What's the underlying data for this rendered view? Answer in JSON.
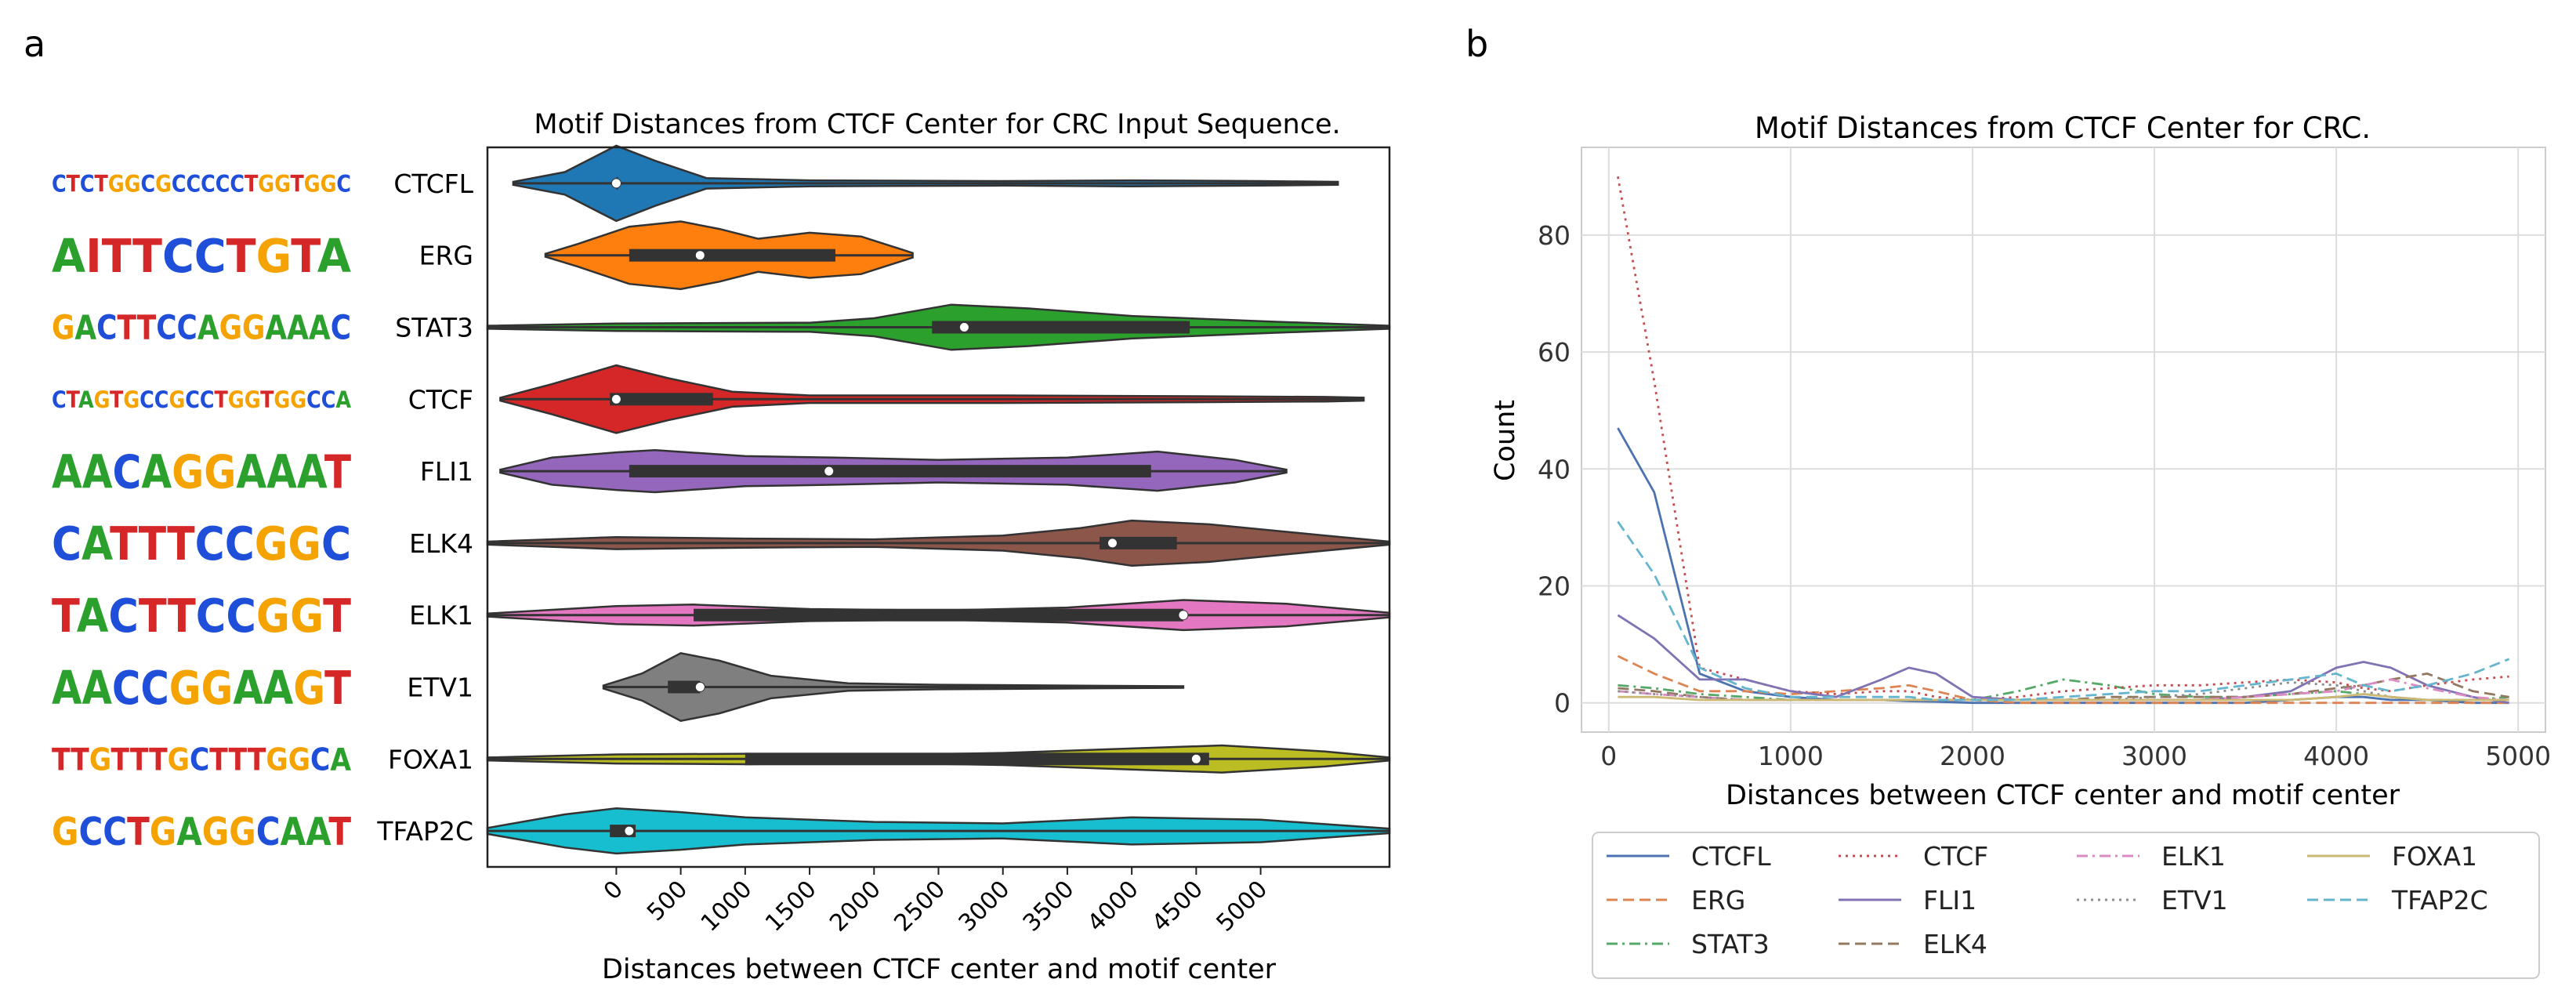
{
  "panels": {
    "a": "a",
    "b": "b"
  },
  "colors": {
    "CTCFL": "#1f77b4",
    "ERG": "#ff7f0e",
    "STAT3": "#2ca02c",
    "CTCF": "#d62728",
    "FLI1": "#9467bd",
    "ELK4": "#8c564b",
    "ELK1": "#e377c2",
    "ETV1": "#7f7f7f",
    "FOXA1": "#bcbd22",
    "TFAP2C": "#17becf",
    "lineCTCFL": "#4c72b0",
    "lineERG": "#dd8452",
    "lineSTAT3": "#55a868",
    "lineCTCF": "#c44e52",
    "lineFLI1": "#8172b3",
    "lineELK4": "#937860",
    "lineELK1": "#da8bc3",
    "lineETV1": "#8c8c8c",
    "lineFOXA1": "#ccb974",
    "lineTFAP2C": "#64b5cd",
    "logoA": "#2ca02c",
    "logoC": "#1f4fd8",
    "logoG": "#f5a300",
    "logoT": "#d62728"
  },
  "motif_logos": [
    {
      "tf": "CTCFL",
      "seq": "CTCTGGCGCCCCCTGGTGGC"
    },
    {
      "tf": "ERG",
      "seq": "AITTCCTGTA"
    },
    {
      "tf": "STAT3",
      "seq": "GACTTCCAGGAAAC"
    },
    {
      "tf": "CTCF",
      "seq": "CTAGTGCCGCCTGGTGGCCA"
    },
    {
      "tf": "FLI1",
      "seq": "AACAGGAAAT"
    },
    {
      "tf": "ELK4",
      "seq": "CATTTCCGGC"
    },
    {
      "tf": "ELK1",
      "seq": "TACTTCCGGT"
    },
    {
      "tf": "ETV1",
      "seq": "AACCGGAAGT"
    },
    {
      "tf": "FOXA1",
      "seq": "TTGTTTGCTTTGGCA"
    },
    {
      "tf": "TFAP2C",
      "seq": "GCCTGAGGCAAT"
    }
  ],
  "chart_data": [
    {
      "type": "violin",
      "title": "Motif Distances from CTCF Center for CRC Input Sequence.",
      "xlabel": "Distances between CTCF center and motif center",
      "ylabel": "",
      "xlim": [
        -1000,
        6000
      ],
      "xticks": [
        0,
        500,
        1000,
        1500,
        2000,
        2500,
        3000,
        3500,
        4000,
        4500,
        5000
      ],
      "xtick_labels": [
        "0",
        "500",
        "1000",
        "1500",
        "2000",
        "2500",
        "3000",
        "3500",
        "4000",
        "4500",
        "5000"
      ],
      "categories": [
        "CTCFL",
        "ERG",
        "STAT3",
        "CTCF",
        "FLI1",
        "ELK4",
        "ELK1",
        "ETV1",
        "FOXA1",
        "TFAP2C"
      ],
      "series": [
        {
          "name": "CTCFL",
          "min": -800,
          "max": 5600,
          "q1": 0,
          "median": 0,
          "q3": 0,
          "density": [
            [
              -800,
              0.02
            ],
            [
              -400,
              0.15
            ],
            [
              0,
              0.5
            ],
            [
              300,
              0.3
            ],
            [
              700,
              0.07
            ],
            [
              1500,
              0.04
            ],
            [
              3000,
              0.03
            ],
            [
              4000,
              0.04
            ],
            [
              5000,
              0.03
            ],
            [
              5600,
              0.02
            ]
          ]
        },
        {
          "name": "ERG",
          "min": -550,
          "max": 2300,
          "q1": 100,
          "median": 650,
          "q3": 1700,
          "density": [
            [
              -550,
              0.02
            ],
            [
              -300,
              0.15
            ],
            [
              100,
              0.38
            ],
            [
              500,
              0.45
            ],
            [
              800,
              0.35
            ],
            [
              1100,
              0.22
            ],
            [
              1500,
              0.3
            ],
            [
              1900,
              0.25
            ],
            [
              2300,
              0.03
            ]
          ]
        },
        {
          "name": "STAT3",
          "min": -1000,
          "max": 6000,
          "q1": 2450,
          "median": 2700,
          "q3": 4450,
          "density": [
            [
              -1000,
              0.02
            ],
            [
              0,
              0.05
            ],
            [
              1500,
              0.06
            ],
            [
              2000,
              0.12
            ],
            [
              2600,
              0.3
            ],
            [
              3200,
              0.25
            ],
            [
              4000,
              0.15
            ],
            [
              5000,
              0.08
            ],
            [
              6000,
              0.02
            ]
          ]
        },
        {
          "name": "CTCF",
          "min": -900,
          "max": 5800,
          "q1": -50,
          "median": 0,
          "q3": 750,
          "density": [
            [
              -900,
              0.02
            ],
            [
              -500,
              0.2
            ],
            [
              0,
              0.45
            ],
            [
              400,
              0.28
            ],
            [
              900,
              0.1
            ],
            [
              1500,
              0.05
            ],
            [
              3000,
              0.05
            ],
            [
              4500,
              0.04
            ],
            [
              5500,
              0.03
            ],
            [
              5800,
              0.02
            ]
          ]
        },
        {
          "name": "FLI1",
          "min": -900,
          "max": 5200,
          "q1": 100,
          "median": 1650,
          "q3": 4150,
          "density": [
            [
              -900,
              0.02
            ],
            [
              -500,
              0.18
            ],
            [
              0,
              0.25
            ],
            [
              300,
              0.28
            ],
            [
              1000,
              0.2
            ],
            [
              1700,
              0.18
            ],
            [
              2500,
              0.15
            ],
            [
              3500,
              0.18
            ],
            [
              4200,
              0.26
            ],
            [
              4800,
              0.15
            ],
            [
              5200,
              0.02
            ]
          ]
        },
        {
          "name": "ELK4",
          "min": -1000,
          "max": 6000,
          "q1": 3750,
          "median": 3850,
          "q3": 4350,
          "density": [
            [
              -1000,
              0.02
            ],
            [
              0,
              0.08
            ],
            [
              1000,
              0.06
            ],
            [
              2000,
              0.05
            ],
            [
              3000,
              0.1
            ],
            [
              3600,
              0.2
            ],
            [
              4000,
              0.3
            ],
            [
              4600,
              0.25
            ],
            [
              5500,
              0.1
            ],
            [
              6000,
              0.02
            ]
          ]
        },
        {
          "name": "ELK1",
          "min": -1000,
          "max": 6000,
          "q1": 600,
          "median": 4400,
          "q3": 4400,
          "density": [
            [
              -1000,
              0.02
            ],
            [
              0,
              0.12
            ],
            [
              600,
              0.14
            ],
            [
              1500,
              0.08
            ],
            [
              2500,
              0.06
            ],
            [
              3500,
              0.1
            ],
            [
              4400,
              0.2
            ],
            [
              5200,
              0.15
            ],
            [
              6000,
              0.03
            ]
          ]
        },
        {
          "name": "ETV1",
          "min": -100,
          "max": 4400,
          "q1": 400,
          "median": 650,
          "q3": 650,
          "density": [
            [
              -100,
              0.02
            ],
            [
              200,
              0.18
            ],
            [
              500,
              0.45
            ],
            [
              800,
              0.35
            ],
            [
              1200,
              0.15
            ],
            [
              1800,
              0.05
            ],
            [
              2500,
              0.03
            ],
            [
              3500,
              0.02
            ],
            [
              4400,
              0.01
            ]
          ]
        },
        {
          "name": "FOXA1",
          "min": -1000,
          "max": 6000,
          "q1": 1000,
          "median": 4500,
          "q3": 4600,
          "density": [
            [
              -1000,
              0.02
            ],
            [
              0,
              0.06
            ],
            [
              1000,
              0.07
            ],
            [
              2000,
              0.05
            ],
            [
              3000,
              0.08
            ],
            [
              4000,
              0.14
            ],
            [
              4700,
              0.18
            ],
            [
              5500,
              0.1
            ],
            [
              6000,
              0.02
            ]
          ]
        },
        {
          "name": "TFAP2C",
          "min": -1000,
          "max": 6000,
          "q1": -50,
          "median": 100,
          "q3": 150,
          "density": [
            [
              -1000,
              0.04
            ],
            [
              -400,
              0.22
            ],
            [
              0,
              0.3
            ],
            [
              500,
              0.25
            ],
            [
              1000,
              0.18
            ],
            [
              2000,
              0.12
            ],
            [
              3000,
              0.1
            ],
            [
              4000,
              0.18
            ],
            [
              5000,
              0.15
            ],
            [
              6000,
              0.03
            ]
          ]
        }
      ]
    },
    {
      "type": "line",
      "title": "Motif Distances from CTCF Center for CRC.",
      "xlabel": "Distances between CTCF center and motif center",
      "ylabel": "Count",
      "xlim": [
        -150,
        5150
      ],
      "ylim": [
        -5,
        95
      ],
      "xticks": [
        0,
        1000,
        2000,
        3000,
        4000,
        5000
      ],
      "xtick_labels": [
        "0",
        "1000",
        "2000",
        "3000",
        "4000",
        "5000"
      ],
      "yticks": [
        0,
        20,
        40,
        60,
        80
      ],
      "ytick_labels": [
        "0",
        "20",
        "40",
        "60",
        "80"
      ],
      "x": [
        50,
        250,
        500,
        750,
        1000,
        1250,
        1500,
        1650,
        1800,
        2000,
        2250,
        2500,
        2750,
        3000,
        3250,
        3500,
        3750,
        4000,
        4150,
        4300,
        4500,
        4750,
        4950
      ],
      "series": [
        {
          "name": "CTCFL",
          "style": "solid",
          "values": [
            47,
            36,
            5,
            2,
            1,
            0.5,
            0.5,
            0.3,
            0.2,
            0,
            0,
            0,
            0,
            0,
            0,
            0,
            0.5,
            1,
            1,
            0.5,
            0.5,
            0,
            0
          ]
        },
        {
          "name": "ERG",
          "style": "dashed",
          "values": [
            8,
            5,
            2,
            2,
            1.5,
            2,
            2.5,
            3,
            2,
            0.5,
            0,
            0,
            0,
            0,
            0,
            0,
            0,
            0,
            0,
            0,
            0,
            0,
            0
          ]
        },
        {
          "name": "STAT3",
          "style": "dashdot",
          "values": [
            3,
            2.5,
            1.5,
            1,
            0.5,
            0.5,
            0.5,
            0.5,
            0.5,
            0.5,
            2,
            4,
            3,
            1.5,
            1,
            1,
            1.5,
            2,
            1.5,
            1,
            0.5,
            0.5,
            1
          ]
        },
        {
          "name": "CTCF",
          "style": "dotted",
          "values": [
            90,
            55,
            6,
            4,
            2,
            1.5,
            2,
            2,
            1,
            0.5,
            1,
            2,
            2.5,
            3,
            3,
            3.5,
            4,
            3.5,
            2.5,
            2,
            3,
            4,
            4.5
          ]
        },
        {
          "name": "FLI1",
          "style": "solid",
          "values": [
            15,
            11,
            4,
            4,
            2,
            1,
            4,
            6,
            5,
            1,
            0.5,
            0.5,
            0.5,
            0.5,
            0.5,
            1,
            2,
            6,
            7,
            6,
            3,
            1,
            0
          ]
        },
        {
          "name": "ELK4",
          "style": "dashed",
          "values": [
            2.5,
            2,
            1,
            0.5,
            0.5,
            0.5,
            0.5,
            0.5,
            0.5,
            0.5,
            0.5,
            0.5,
            1,
            1,
            1,
            1,
            1.5,
            2.5,
            3,
            4,
            5,
            2,
            1
          ]
        },
        {
          "name": "ELK1",
          "style": "dashdot",
          "values": [
            2,
            1.5,
            1,
            0.5,
            0.5,
            0.5,
            0.5,
            0.5,
            0.5,
            0.5,
            0.5,
            0.5,
            0.5,
            0.5,
            0.5,
            1,
            1.5,
            2,
            3,
            4,
            2.5,
            1,
            0.5
          ]
        },
        {
          "name": "ETV1",
          "style": "dotted",
          "values": [
            2,
            1.5,
            1,
            0.5,
            0.5,
            0.5,
            0.5,
            0.5,
            0.5,
            0.5,
            0.5,
            0.5,
            0.5,
            1,
            1.5,
            2.5,
            3.5,
            3,
            2,
            1,
            0.5,
            0.5,
            0.5
          ]
        },
        {
          "name": "FOXA1",
          "style": "solid",
          "values": [
            1,
            1,
            0.5,
            0.5,
            0.5,
            0.5,
            0.5,
            0.5,
            0.5,
            0.5,
            0.5,
            0.5,
            0.5,
            0.5,
            0.5,
            0.5,
            0.5,
            1,
            1.5,
            1,
            0.5,
            0.5,
            0.5
          ]
        },
        {
          "name": "TFAP2C",
          "style": "dashed",
          "values": [
            31,
            22,
            6,
            2.5,
            1,
            1,
            1,
            1,
            0.5,
            0.5,
            0.5,
            1,
            1.5,
            2,
            2,
            3,
            4,
            5,
            3,
            2,
            3,
            5,
            7.5
          ]
        }
      ],
      "legend": [
        "CTCFL",
        "ERG",
        "STAT3",
        "CTCF",
        "FLI1",
        "ELK4",
        "ELK1",
        "ETV1",
        "FOXA1",
        "TFAP2C"
      ]
    }
  ]
}
